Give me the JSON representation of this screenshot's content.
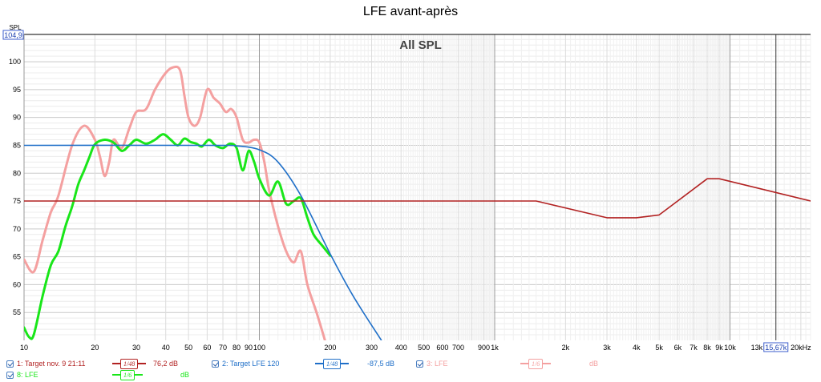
{
  "title": "LFE avant-après",
  "chart_data": {
    "type": "line",
    "title": "All SPL",
    "x_scale": "log",
    "xlim": [
      10,
      22000
    ],
    "ylim": [
      50,
      104.9
    ],
    "ylabel": "SPL",
    "y_max_readout": "104,9",
    "x_cursor_readout": "15,67k",
    "x_cursor_value": 15670,
    "y_ticks": [
      55,
      60,
      65,
      70,
      75,
      80,
      85,
      90,
      95,
      100
    ],
    "x_ticks": [
      {
        "v": 10,
        "label": "10"
      },
      {
        "v": 20,
        "label": "20"
      },
      {
        "v": 30,
        "label": "30"
      },
      {
        "v": 40,
        "label": "40"
      },
      {
        "v": 50,
        "label": "50"
      },
      {
        "v": 60,
        "label": "60"
      },
      {
        "v": 70,
        "label": "70"
      },
      {
        "v": 80,
        "label": "80"
      },
      {
        "v": 90,
        "label": "90"
      },
      {
        "v": 100,
        "label": "100"
      },
      {
        "v": 200,
        "label": "200"
      },
      {
        "v": 300,
        "label": "300"
      },
      {
        "v": 400,
        "label": "400"
      },
      {
        "v": 500,
        "label": "500"
      },
      {
        "v": 600,
        "label": "600"
      },
      {
        "v": 700,
        "label": "700"
      },
      {
        "v": 900,
        "label": "900"
      },
      {
        "v": 1000,
        "label": "1k"
      },
      {
        "v": 2000,
        "label": "2k"
      },
      {
        "v": 3000,
        "label": "3k"
      },
      {
        "v": 4000,
        "label": "4k"
      },
      {
        "v": 5000,
        "label": "5k"
      },
      {
        "v": 6000,
        "label": "6k"
      },
      {
        "v": 7000,
        "label": "7k"
      },
      {
        "v": 8000,
        "label": "8k"
      },
      {
        "v": 9000,
        "label": "9k"
      },
      {
        "v": 10000,
        "label": "10k"
      },
      {
        "v": 13000,
        "label": "13k"
      },
      {
        "v": 20000,
        "label": "20kHz"
      }
    ],
    "series": [
      {
        "name": "Target nov. 9 21:11",
        "color": "#b22222",
        "width": 1.6,
        "x": [
          10,
          1500,
          3000,
          4000,
          5000,
          8000,
          9000,
          22000
        ],
        "y": [
          75,
          75,
          72,
          72,
          72.5,
          79,
          79,
          75
        ]
      },
      {
        "name": "Target LFE 120",
        "color": "#1f6fc8",
        "width": 1.6,
        "x": [
          10,
          60,
          80,
          100,
          120,
          150,
          200,
          250,
          330
        ],
        "y": [
          85,
          85,
          84.9,
          84.2,
          82,
          76,
          65.5,
          58,
          50
        ]
      },
      {
        "name": "LFE",
        "color": "#f4a0a0",
        "width": 3,
        "x": [
          10,
          11,
          12,
          13,
          14,
          16,
          18,
          20,
          21,
          22,
          23,
          24,
          26,
          28,
          30,
          33,
          36,
          40,
          43,
          46,
          48,
          50,
          53,
          56,
          60,
          64,
          68,
          72,
          76,
          80,
          85,
          90,
          95,
          100,
          105,
          110,
          120,
          130,
          140,
          150,
          160,
          175,
          190
        ],
        "y": [
          64.5,
          62.3,
          68,
          73,
          76,
          85,
          88.5,
          86,
          83,
          79.5,
          82,
          86,
          84.5,
          88,
          91,
          91.5,
          95,
          98,
          99,
          98.5,
          94,
          90,
          88.5,
          90,
          95,
          93.5,
          92.5,
          91,
          91.5,
          90,
          86,
          85.5,
          86,
          85.5,
          82,
          77,
          70.5,
          66,
          64,
          66,
          60,
          55,
          50
        ]
      },
      {
        "name": "LFE",
        "color": "#19e619",
        "width": 3,
        "x": [
          10,
          10.5,
          11,
          12,
          13,
          14,
          15,
          16,
          17,
          18,
          19,
          20,
          22,
          24,
          26,
          28,
          30,
          33,
          36,
          39,
          42,
          45,
          48,
          51,
          54,
          57,
          61,
          65,
          70,
          75,
          80,
          85,
          90,
          95,
          100,
          110,
          120,
          130,
          140,
          150,
          160,
          170,
          185,
          200
        ],
        "y": [
          52.3,
          50.6,
          51,
          58,
          63.5,
          66,
          70.5,
          74,
          78,
          80.5,
          83,
          85.2,
          86,
          85.5,
          84,
          85,
          86,
          85.3,
          86,
          87,
          86,
          85,
          86.2,
          85.6,
          85.3,
          84.8,
          86,
          85,
          84.5,
          85.3,
          84.5,
          80.5,
          84,
          82,
          79,
          76,
          78.5,
          74.5,
          75,
          75.5,
          72,
          69,
          67,
          65.2
        ]
      }
    ],
    "legend": [
      {
        "label": "1: Target nov. 9 21:11",
        "smoothing": "1/48",
        "value": "76,2 dB",
        "color": "#b22222"
      },
      {
        "label": "2: Target LFE 120",
        "smoothing": "1/48",
        "value": "-87,5 dB",
        "color": "#1f6fc8"
      },
      {
        "label": "3: LFE",
        "smoothing": "1/6",
        "value": "dB",
        "color": "#f4a0a0"
      },
      {
        "label": "8: LFE",
        "smoothing": "1/6",
        "value": "dB",
        "color": "#19e619"
      }
    ]
  }
}
